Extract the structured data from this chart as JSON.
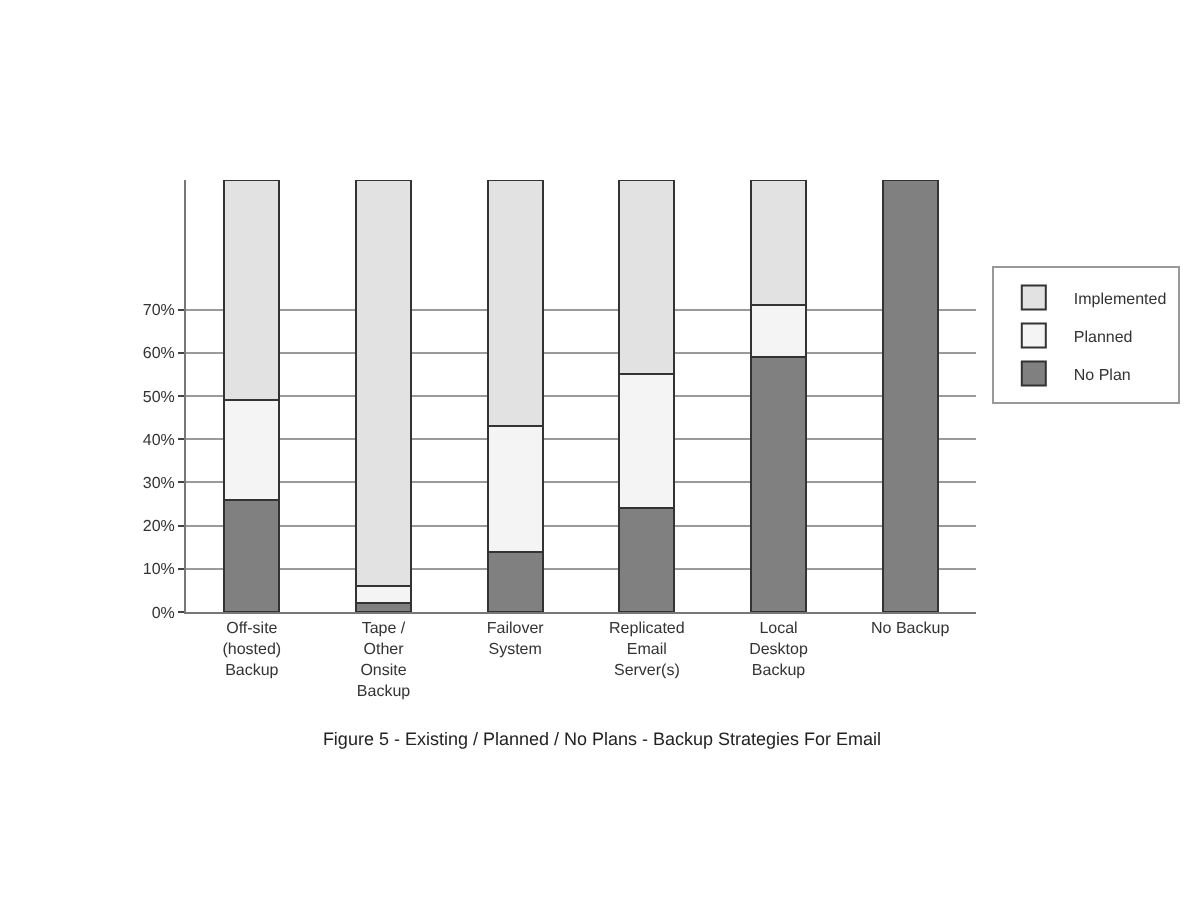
{
  "chart_data": {
    "type": "bar",
    "stacked": true,
    "title": "Figure 5 - Existing / Planned / No Plans - Backup Strategies For Email",
    "categories": [
      "Off-site (hosted) Backup",
      "Tape / Other Onsite Backup",
      "Failover System",
      "Replicated Email Server(s)",
      "Local Desktop Backup",
      "No Backup"
    ],
    "series": [
      {
        "name": "No Plan",
        "color": "#808080",
        "values": [
          26,
          2,
          14,
          24,
          59,
          100
        ]
      },
      {
        "name": "Planned",
        "color": "#f4f4f4",
        "values": [
          23,
          4,
          29,
          31,
          12,
          0
        ]
      },
      {
        "name": "Implemented",
        "color": "#e2e2e2",
        "values": [
          51,
          94,
          57,
          45,
          29,
          0
        ]
      }
    ],
    "ylim": [
      0,
      100
    ],
    "yticks": [
      {
        "value": 0,
        "label": "0%"
      },
      {
        "value": 10,
        "label": "10%"
      },
      {
        "value": 20,
        "label": "20%"
      },
      {
        "value": 30,
        "label": "30%"
      },
      {
        "value": 40,
        "label": "40%"
      },
      {
        "value": 50,
        "label": "50%"
      },
      {
        "value": 60,
        "label": "60%"
      },
      {
        "value": 70,
        "label": "70%"
      }
    ],
    "grid": "y",
    "legend": "right"
  }
}
